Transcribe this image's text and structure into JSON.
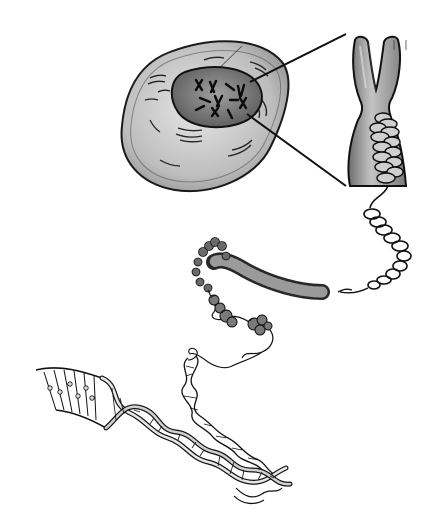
{
  "diagram": {
    "parts": [
      "cell",
      "nucleus",
      "chromosome",
      "coiled-chromatin-fiber",
      "nucleosomes",
      "dna-double-helix"
    ],
    "colors": {
      "stroke": "#1a1a1a",
      "cell_fill": "#bdbdbd",
      "nucleus_fill": "#7d7d7d",
      "chromosome_fill": "#a8a8a8",
      "background": "#ffffff"
    }
  }
}
